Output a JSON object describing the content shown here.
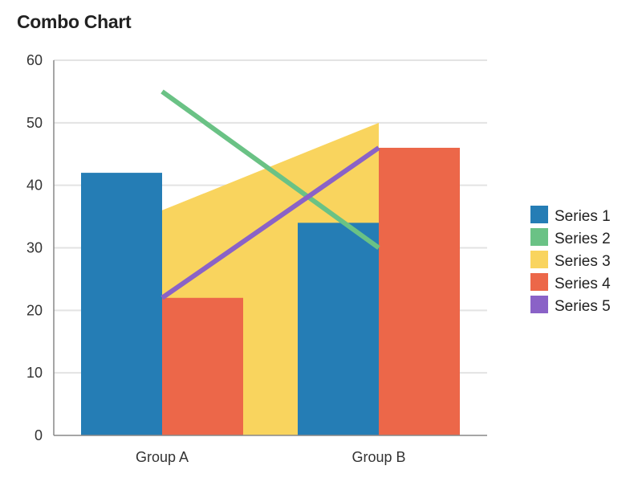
{
  "chart_data": {
    "type": "combo",
    "title": "Combo Chart",
    "xlabel": "",
    "ylabel": "",
    "categories": [
      "Group A",
      "Group B"
    ],
    "ylim": [
      0,
      60
    ],
    "yticks": [
      0,
      10,
      20,
      30,
      40,
      50,
      60
    ],
    "grid": true,
    "legend_position": "right",
    "series": [
      {
        "name": "Series 1",
        "kind": "bar",
        "color": "#257db5",
        "values": [
          42,
          34
        ]
      },
      {
        "name": "Series 2",
        "kind": "line",
        "color": "#6ac285",
        "values": [
          55,
          30
        ]
      },
      {
        "name": "Series 3",
        "kind": "area",
        "color": "#f9d45e",
        "values": [
          36,
          50
        ]
      },
      {
        "name": "Series 4",
        "kind": "bar",
        "color": "#ec6749",
        "values": [
          22,
          46
        ]
      },
      {
        "name": "Series 5",
        "kind": "line",
        "color": "#8a62c7",
        "values": [
          22,
          46
        ]
      }
    ]
  }
}
